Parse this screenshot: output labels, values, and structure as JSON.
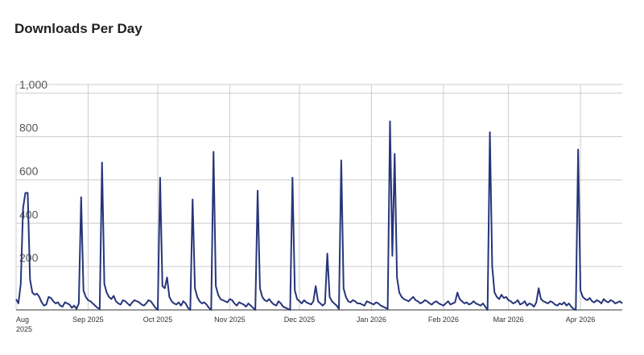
{
  "chart_data": {
    "type": "line",
    "title": "Downloads Per Day",
    "categories": [
      "Aug 2025",
      null,
      null,
      null,
      null,
      null,
      null,
      null,
      null,
      null,
      null,
      null,
      null,
      null,
      null,
      null,
      null,
      null,
      null,
      null,
      null,
      null,
      null,
      null,
      null,
      null,
      null,
      null,
      null,
      null,
      null,
      "Sep 2025",
      null,
      null,
      null,
      null,
      null,
      null,
      null,
      null,
      null,
      null,
      null,
      null,
      null,
      null,
      null,
      null,
      null,
      null,
      null,
      null,
      null,
      null,
      null,
      null,
      null,
      null,
      null,
      null,
      null,
      "Oct 2025",
      null,
      null,
      null,
      null,
      null,
      null,
      null,
      null,
      null,
      null,
      null,
      null,
      null,
      null,
      null,
      null,
      null,
      null,
      null,
      null,
      null,
      null,
      null,
      null,
      null,
      null,
      null,
      null,
      null,
      null,
      "Nov 2025",
      null,
      null,
      null,
      null,
      null,
      null,
      null,
      null,
      null,
      null,
      null,
      null,
      null,
      null,
      null,
      null,
      null,
      null,
      null,
      null,
      null,
      null,
      null,
      null,
      null,
      null,
      null,
      null,
      null,
      "Dec 2025",
      null,
      null,
      null,
      null,
      null,
      null,
      null,
      null,
      null,
      null,
      null,
      null,
      null,
      null,
      null,
      null,
      null,
      null,
      null,
      null,
      null,
      null,
      null,
      null,
      null,
      null,
      null,
      null,
      null,
      null,
      "Jan 2026",
      null,
      null,
      null,
      null,
      null,
      null,
      null,
      null,
      null,
      null,
      null,
      null,
      null,
      null,
      null,
      null,
      null,
      null,
      null,
      null,
      null,
      null,
      null,
      null,
      null,
      null,
      null,
      null,
      null,
      null,
      "Feb 2026",
      null,
      null,
      null,
      null,
      null,
      null,
      null,
      null,
      null,
      null,
      null,
      null,
      null,
      null,
      null,
      null,
      null,
      null,
      null,
      null,
      null,
      null,
      null,
      null,
      null,
      null,
      null,
      "Mar 2026",
      null,
      null,
      null,
      null,
      null,
      null,
      null,
      null,
      null,
      null,
      null,
      null,
      null,
      null,
      null,
      null,
      null,
      null,
      null,
      null,
      null,
      null,
      null,
      null,
      null,
      null,
      null,
      null,
      null,
      null,
      "Apr 2026",
      null,
      null,
      null,
      null,
      null,
      null,
      null,
      null,
      null,
      null,
      null,
      null,
      null,
      null,
      null,
      null,
      null,
      null
    ],
    "series": [
      {
        "color": "#26357a",
        "values": [
          50,
          30,
          120,
          470,
          540,
          540,
          140,
          80,
          70,
          75,
          60,
          35,
          20,
          25,
          60,
          55,
          40,
          30,
          35,
          20,
          15,
          35,
          30,
          25,
          10,
          20,
          5,
          30,
          520,
          90,
          60,
          45,
          40,
          30,
          20,
          10,
          5,
          680,
          120,
          80,
          60,
          50,
          65,
          40,
          30,
          25,
          45,
          40,
          30,
          20,
          35,
          45,
          40,
          35,
          25,
          20,
          30,
          45,
          40,
          25,
          10,
          0,
          610,
          110,
          100,
          150,
          60,
          40,
          30,
          25,
          35,
          20,
          40,
          30,
          10,
          0,
          510,
          100,
          60,
          40,
          30,
          35,
          25,
          10,
          0,
          730,
          110,
          70,
          50,
          45,
          40,
          35,
          50,
          45,
          30,
          20,
          35,
          30,
          25,
          15,
          30,
          20,
          10,
          0,
          550,
          100,
          60,
          45,
          40,
          50,
          35,
          25,
          20,
          40,
          30,
          15,
          10,
          5,
          0,
          610,
          90,
          50,
          40,
          30,
          45,
          35,
          30,
          25,
          40,
          110,
          40,
          30,
          20,
          30,
          260,
          60,
          40,
          30,
          20,
          5,
          690,
          100,
          60,
          40,
          35,
          45,
          40,
          30,
          30,
          25,
          20,
          40,
          35,
          30,
          25,
          35,
          30,
          20,
          15,
          10,
          5,
          870,
          250,
          720,
          150,
          80,
          60,
          50,
          45,
          40,
          50,
          60,
          45,
          40,
          30,
          35,
          45,
          40,
          30,
          25,
          35,
          40,
          30,
          25,
          20,
          30,
          40,
          25,
          30,
          35,
          80,
          50,
          40,
          30,
          35,
          25,
          30,
          40,
          30,
          25,
          20,
          30,
          15,
          0,
          820,
          200,
          80,
          60,
          50,
          70,
          55,
          60,
          45,
          40,
          30,
          35,
          45,
          25,
          30,
          40,
          20,
          30,
          25,
          15,
          35,
          100,
          50,
          40,
          35,
          30,
          40,
          35,
          25,
          20,
          30,
          25,
          35,
          20,
          30,
          15,
          5,
          0,
          740,
          90,
          60,
          50,
          45,
          55,
          40,
          35,
          45,
          40,
          30,
          50,
          40,
          35,
          45,
          40,
          30,
          35,
          40,
          30
        ]
      }
    ],
    "ylim": [
      0,
      1040
    ],
    "yticks": [
      200,
      400,
      600,
      800,
      {
        "value": 1000,
        "label": "1,000"
      }
    ],
    "grid": true
  }
}
